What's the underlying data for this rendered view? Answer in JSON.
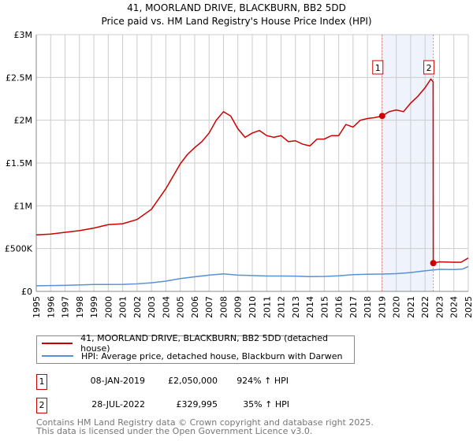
{
  "chart_data": {
    "type": "line",
    "title": "41, MOORLAND DRIVE, BLACKBURN, BB2 5DD",
    "subtitle": "Price paid vs. HM Land Registry's House Price Index (HPI)",
    "xlabel": "",
    "ylabel": "",
    "xlim": [
      1995,
      2025
    ],
    "ylim": [
      0,
      3000000
    ],
    "x_ticks": [
      "1995",
      "1996",
      "1997",
      "1998",
      "1999",
      "2000",
      "2001",
      "2002",
      "2003",
      "2004",
      "2005",
      "2006",
      "2007",
      "2008",
      "2009",
      "2010",
      "2011",
      "2012",
      "2013",
      "2014",
      "2015",
      "2016",
      "2017",
      "2018",
      "2019",
      "2020",
      "2021",
      "2022",
      "2023",
      "2024",
      "2025"
    ],
    "y_ticks": [
      {
        "v": 0,
        "label": "£0"
      },
      {
        "v": 500000,
        "label": "£500K"
      },
      {
        "v": 1000000,
        "label": "£1M"
      },
      {
        "v": 1500000,
        "label": "£1.5M"
      },
      {
        "v": 2000000,
        "label": "£2M"
      },
      {
        "v": 2500000,
        "label": "£2.5M"
      },
      {
        "v": 3000000,
        "label": "£3M"
      }
    ],
    "grid": true,
    "shaded_range": [
      2019.02,
      2022.57
    ],
    "series": [
      {
        "name": "41, MOORLAND DRIVE, BLACKBURN, BB2 5DD (detached house)",
        "color": "#cc0000",
        "x": [
          1995,
          1996,
          1997,
          1998,
          1999,
          2000,
          2001,
          2002,
          2003,
          2004,
          2005,
          2005.5,
          2006,
          2006.5,
          2007,
          2007.5,
          2008,
          2008.5,
          2009,
          2009.5,
          2010,
          2010.5,
          2011,
          2011.5,
          2012,
          2012.5,
          2013,
          2013.5,
          2014,
          2014.5,
          2015,
          2015.5,
          2016,
          2016.5,
          2017,
          2017.5,
          2018,
          2018.5,
          2019.02,
          2019.5,
          2020,
          2020.5,
          2021,
          2021.5,
          2022,
          2022.4,
          2022.56,
          2022.57,
          2023,
          2024,
          2024.5,
          2025
        ],
        "y": [
          660000,
          670000,
          690000,
          710000,
          740000,
          780000,
          790000,
          840000,
          960000,
          1200000,
          1490000,
          1600000,
          1680000,
          1750000,
          1850000,
          2000000,
          2100000,
          2050000,
          1900000,
          1800000,
          1850000,
          1880000,
          1820000,
          1800000,
          1820000,
          1750000,
          1760000,
          1720000,
          1700000,
          1780000,
          1780000,
          1820000,
          1820000,
          1950000,
          1920000,
          2000000,
          2020000,
          2030000,
          2050000,
          2100000,
          2120000,
          2100000,
          2200000,
          2280000,
          2380000,
          2480000,
          2450000,
          329995,
          345000,
          340000,
          340000,
          390000
        ]
      },
      {
        "name": "HPI: Average price, detached house, Blackburn with Darwen",
        "color": "#5b8fd6",
        "x": [
          1995,
          1997,
          1999,
          2001,
          2002,
          2003,
          2004,
          2005,
          2006,
          2007,
          2008,
          2009,
          2010,
          2011,
          2012,
          2013,
          2014,
          2015,
          2016,
          2017,
          2018,
          2019,
          2020,
          2021,
          2022,
          2023,
          2024,
          2024.6,
          2025
        ],
        "y": [
          65000,
          70000,
          80000,
          82000,
          88000,
          100000,
          120000,
          150000,
          170000,
          190000,
          205000,
          190000,
          185000,
          180000,
          180000,
          178000,
          172000,
          175000,
          182000,
          195000,
          200000,
          203000,
          207000,
          220000,
          240000,
          258000,
          255000,
          260000,
          290000
        ]
      }
    ],
    "annotations": [
      {
        "label": "1",
        "x": 2019.02,
        "y": 2050000,
        "date": "08-JAN-2019",
        "price": "£2,050,000",
        "hpi": "924% ↑ HPI"
      },
      {
        "label": "2",
        "x": 2022.57,
        "y": 329995,
        "date": "28-JUL-2022",
        "price": "£329,995",
        "hpi": "35% ↑ HPI"
      }
    ],
    "legend_position": "bottom"
  },
  "footer": {
    "line1": "Contains HM Land Registry data © Crown copyright and database right 2025.",
    "line2": "This data is licensed under the Open Government Licence v3.0."
  }
}
